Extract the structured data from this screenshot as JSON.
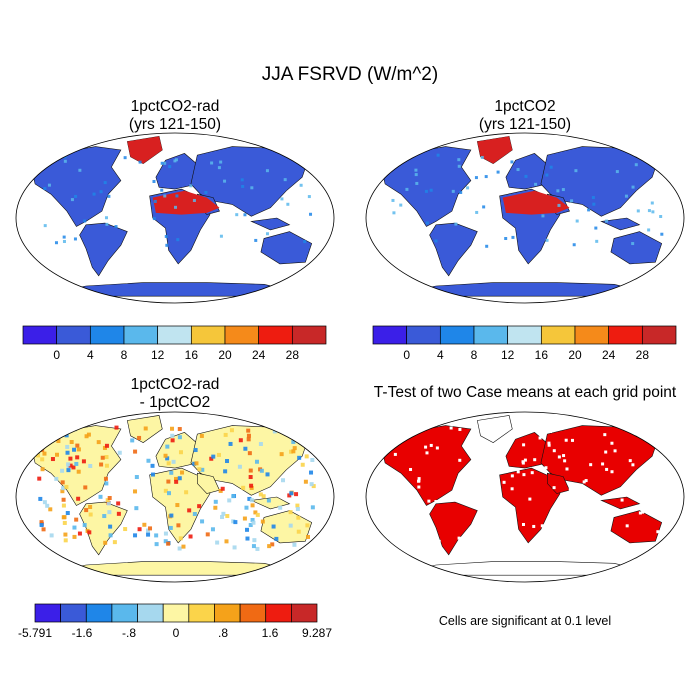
{
  "title": "JJA FSRVD (W/m^2)",
  "panels": [
    {
      "title_line1": "1pctCO2-rad",
      "title_line2": "(yrs 121-150)"
    },
    {
      "title_line1": "1pctCO2",
      "title_line2": "(yrs 121-150)"
    },
    {
      "title_line1": "1pctCO2-rad",
      "title_line2": "- 1pctCO2"
    },
    {
      "title_line1": "T-Test of two Case means at each grid point",
      "title_line2": ""
    }
  ],
  "colorbar_abs": {
    "colors": [
      "#3b1fe8",
      "#3a5ad8",
      "#1f86e8",
      "#5ab8ec",
      "#c0e4f0",
      "#f5c63a",
      "#f58a1a",
      "#ee1c10",
      "#c82828"
    ],
    "labels": [
      "0",
      "4",
      "8",
      "12",
      "16",
      "20",
      "24",
      "28"
    ]
  },
  "colorbar_diff": {
    "colors": [
      "#3b1fe8",
      "#3a5ad8",
      "#1f86e8",
      "#5ab8ec",
      "#a6d8ee",
      "#fdf6a4",
      "#fbd44a",
      "#f5a21a",
      "#f06a14",
      "#ee1c10",
      "#c82828"
    ],
    "labels": [
      "-5.791",
      "-1.6",
      "-.8",
      "0",
      ".8",
      "1.6",
      "9.287"
    ]
  },
  "significance_note": "Cells are significant at 0.1 level",
  "colors": {
    "land_base": "#3a5ad8",
    "hot": "#d82020",
    "warm": "#f5a21a",
    "sig": "#e80000",
    "diff_base": "#fdf6a4"
  }
}
